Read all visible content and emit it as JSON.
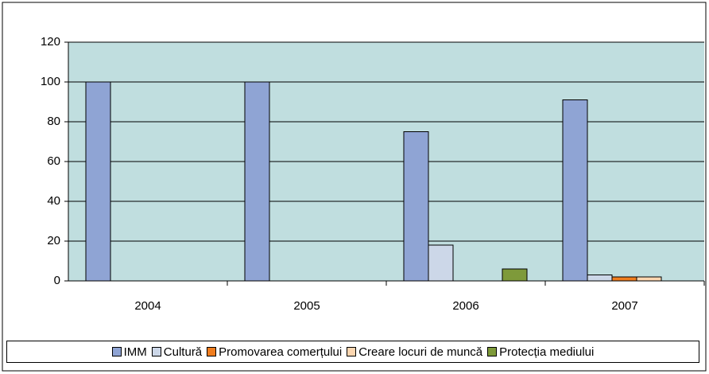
{
  "chart_data": {
    "type": "bar",
    "categories": [
      "2004",
      "2005",
      "2006",
      "2007"
    ],
    "series": [
      {
        "name": "IMM",
        "color": "#8fa4d4",
        "values": [
          100,
          100,
          75,
          91
        ]
      },
      {
        "name": "Cultură",
        "color": "#ccd7e8",
        "values": [
          0,
          0,
          18,
          3
        ]
      },
      {
        "name": "Promovarea comerțului",
        "color": "#f07d1e",
        "values": [
          0,
          0,
          0,
          2
        ]
      },
      {
        "name": "Creare locuri de muncă",
        "color": "#fcd6b0",
        "values": [
          0,
          0,
          0,
          2
        ]
      },
      {
        "name": "Protecția mediului",
        "color": "#7e9a3a",
        "values": [
          0,
          0,
          6,
          0
        ]
      }
    ],
    "ylim": [
      0,
      120
    ],
    "yticks": [
      0,
      20,
      40,
      60,
      80,
      100,
      120
    ],
    "grid": true,
    "legend": "bottom"
  }
}
